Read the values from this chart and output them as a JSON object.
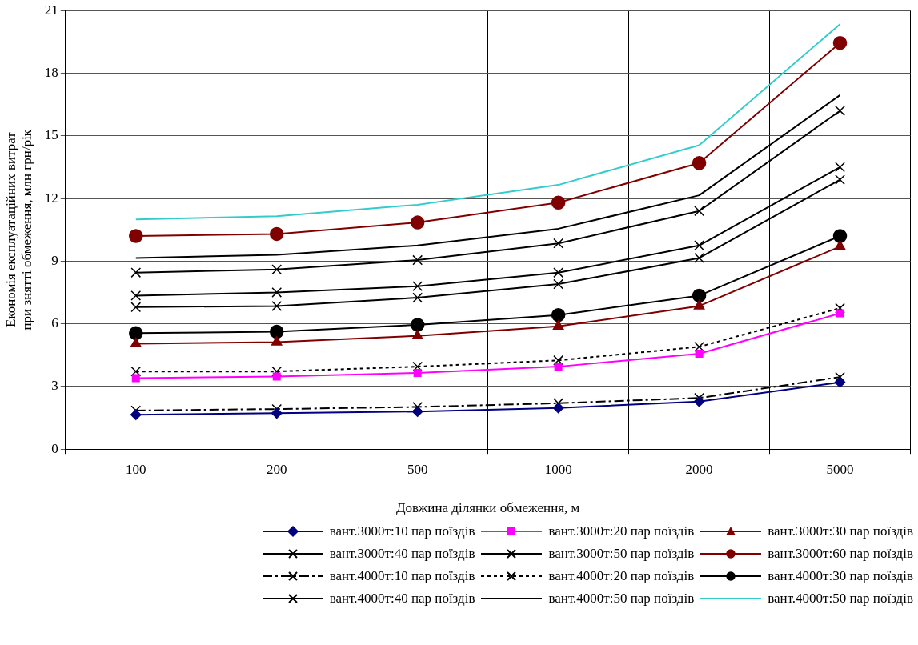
{
  "chart_data": {
    "type": "line",
    "xlabel": "Довжина ділянки обмеження, м",
    "ylabel": "Економія експлуатаційних витрат при знятті обмеження, млн грн/рік",
    "categories": [
      "100",
      "200",
      "500",
      "1000",
      "2000",
      "5000"
    ],
    "ylim": [
      0,
      21
    ],
    "yticks": [
      0,
      3,
      6,
      9,
      12,
      15,
      18,
      21
    ],
    "grid": true,
    "legend": "bottom",
    "series": [
      {
        "name": "вант.3000т:10 пар поїздів",
        "color": "#000080",
        "marker": "diamond",
        "line_style": "solid",
        "values": [
          1.65,
          1.72,
          1.8,
          1.97,
          2.28,
          3.2
        ]
      },
      {
        "name": "вант.3000т:20 пар поїздів",
        "color": "#ff00ff",
        "marker": "square",
        "line_style": "solid",
        "values": [
          3.4,
          3.48,
          3.65,
          3.95,
          4.57,
          6.5
        ]
      },
      {
        "name": "вант.3000т:30 пар поїздів",
        "color": "#800000",
        "marker": "triangle",
        "line_style": "solid",
        "values": [
          5.05,
          5.12,
          5.42,
          5.88,
          6.85,
          9.7
        ]
      },
      {
        "name": "вант.3000т:40 пар поїздів",
        "color": "#000000",
        "marker": "cross",
        "line_style": "solid",
        "values": [
          6.8,
          6.85,
          7.25,
          7.9,
          9.15,
          12.9
        ]
      },
      {
        "name": "вант.3000т:50 пар поїздів",
        "color": "#000000",
        "marker": "cross",
        "line_style": "solid",
        "values": [
          8.45,
          8.6,
          9.05,
          9.85,
          11.4,
          16.2
        ]
      },
      {
        "name": "вант.3000т:60 пар поїздів",
        "color": "#800000",
        "marker": "circle",
        "line_style": "solid",
        "values": [
          10.2,
          10.3,
          10.85,
          11.8,
          13.7,
          19.45
        ]
      },
      {
        "name": "вант.4000т:10 пар поїздів",
        "color": "#000000",
        "marker": "cross",
        "line_style": "dashed",
        "values": [
          1.85,
          1.92,
          2.02,
          2.2,
          2.45,
          3.45
        ]
      },
      {
        "name": "вант.4000т:20 пар поїздів",
        "color": "#000000",
        "marker": "cross",
        "line_style": "dotted",
        "values": [
          3.72,
          3.72,
          3.95,
          4.25,
          4.9,
          6.75
        ]
      },
      {
        "name": "вант.4000т:30 пар поїздів",
        "color": "#000000",
        "marker": "circle",
        "line_style": "solid",
        "values": [
          5.55,
          5.62,
          5.95,
          6.42,
          7.35,
          10.2
        ]
      },
      {
        "name": "вант.4000т:40 пар поїздів",
        "color": "#000000",
        "marker": "cross",
        "line_style": "solid",
        "values": [
          7.35,
          7.5,
          7.8,
          8.45,
          9.75,
          13.5
        ]
      },
      {
        "name": "вант.4000т:50 пар поїздів",
        "color": "#000000",
        "marker": "none",
        "line_style": "solid",
        "values": [
          9.15,
          9.3,
          9.75,
          10.55,
          12.15,
          16.95
        ]
      },
      {
        "name": "вант.4000т:50 пар поїздів",
        "color": "#33cccc",
        "marker": "none",
        "line_style": "solid",
        "values": [
          11.0,
          11.15,
          11.7,
          12.65,
          14.55,
          20.35
        ]
      }
    ]
  }
}
